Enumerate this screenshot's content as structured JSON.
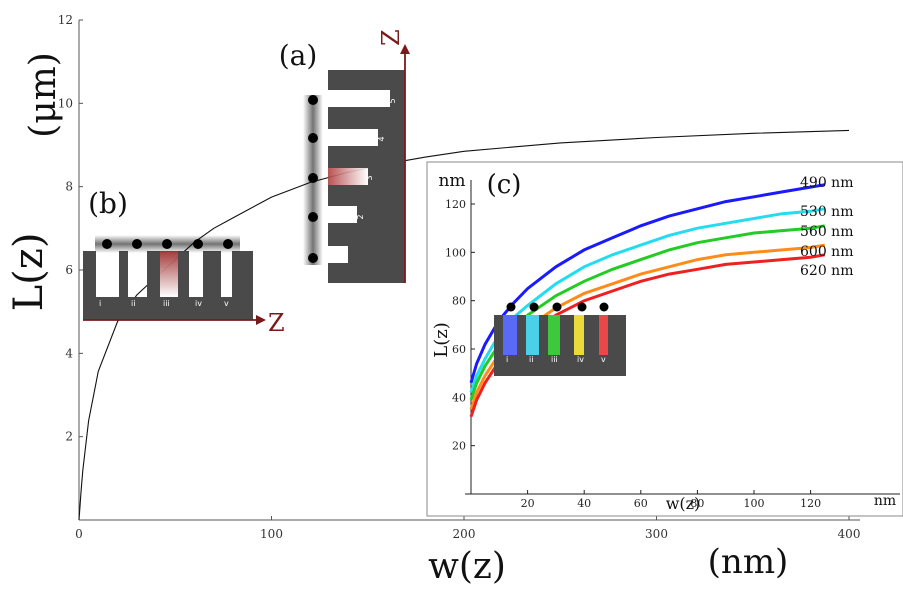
{
  "chart_data": [
    {
      "type": "line",
      "name": "main",
      "xlabel": "w(z)",
      "xunit": "(nm)",
      "ylabel": "L(z)",
      "yunit": "(μm)",
      "xlim": [
        0,
        430
      ],
      "ylim": [
        0,
        12
      ],
      "xticks": [
        0,
        100,
        200,
        300,
        400
      ],
      "yticks": [
        2,
        4,
        6,
        8,
        10,
        12
      ],
      "series": [
        {
          "name": "L(z)",
          "color": "#000000",
          "x": [
            0.5,
            1,
            2,
            5,
            10,
            20,
            30,
            40,
            50,
            60,
            70,
            80,
            100,
            120,
            140,
            160,
            180,
            200,
            250,
            300,
            350,
            400
          ],
          "y": [
            0.33,
            0.64,
            1.19,
            2.38,
            3.57,
            4.76,
            5.4,
            5.83,
            6.25,
            6.67,
            7.0,
            7.25,
            7.75,
            8.1,
            8.35,
            8.55,
            8.71,
            8.85,
            9.05,
            9.18,
            9.28,
            9.35
          ]
        }
      ]
    },
    {
      "type": "line",
      "name": "inset-c",
      "panel_label": "(c)",
      "xlabel": "w(z)",
      "xunit": "nm",
      "ylabel": "L(z)",
      "yunit": "nm",
      "xlim": [
        0,
        125
      ],
      "ylim": [
        0,
        135
      ],
      "xticks": [
        20,
        40,
        60,
        80,
        100,
        120
      ],
      "yticks": [
        20,
        40,
        60,
        80,
        100,
        120
      ],
      "series": [
        {
          "name": "490 nm",
          "color": "#1a1aff",
          "x": [
            0,
            2,
            5,
            10,
            15,
            20,
            30,
            40,
            50,
            60,
            70,
            80,
            90,
            100,
            110,
            120,
            125
          ],
          "y": [
            46,
            54,
            62,
            72,
            79,
            85,
            94,
            101,
            106,
            111,
            115,
            118,
            121,
            123,
            125,
            127,
            128
          ]
        },
        {
          "name": "530 nm",
          "color": "#22ddf0",
          "x": [
            0,
            2,
            5,
            10,
            15,
            20,
            30,
            40,
            50,
            60,
            70,
            80,
            90,
            100,
            110,
            120,
            125
          ],
          "y": [
            42,
            49,
            56,
            66,
            73,
            78,
            87,
            94,
            99,
            103,
            107,
            110,
            112,
            114,
            116,
            117,
            118
          ]
        },
        {
          "name": "560 nm",
          "color": "#22cc22",
          "x": [
            0,
            2,
            5,
            10,
            15,
            20,
            30,
            40,
            50,
            60,
            70,
            80,
            90,
            100,
            110,
            120,
            125
          ],
          "y": [
            39,
            46,
            53,
            62,
            69,
            74,
            82,
            88,
            93,
            97,
            101,
            104,
            106,
            108,
            109,
            110,
            111
          ]
        },
        {
          "name": "600 nm",
          "color": "#ff8c1a",
          "x": [
            0,
            2,
            5,
            10,
            15,
            20,
            30,
            40,
            50,
            60,
            70,
            80,
            90,
            100,
            110,
            120,
            125
          ],
          "y": [
            35,
            42,
            49,
            58,
            64,
            69,
            77,
            83,
            87,
            91,
            94,
            97,
            99,
            100,
            101,
            102,
            103
          ]
        },
        {
          "name": "620 nm",
          "color": "#ee2020",
          "x": [
            0,
            2,
            5,
            10,
            15,
            20,
            30,
            40,
            50,
            60,
            70,
            80,
            90,
            100,
            110,
            120,
            125
          ],
          "y": [
            32,
            39,
            46,
            55,
            61,
            66,
            74,
            80,
            84,
            88,
            91,
            93,
            95,
            96,
            97,
            98,
            99
          ]
        }
      ]
    }
  ],
  "panels": {
    "a_label": "(a)",
    "b_label": "(b)",
    "c_label": "(c)",
    "z_label": "Z",
    "a_slit_labels": [
      "1",
      "2",
      "3",
      "4",
      "5"
    ],
    "b_slit_labels": [
      "i",
      "ii",
      "iii",
      "iv",
      "v"
    ],
    "c_slit_labels": [
      "i",
      "ii",
      "iii",
      "iv",
      "v"
    ]
  },
  "colors": {
    "axis_dark_red": "#7a1a1a",
    "grating_gray": "#4a4a4a"
  }
}
